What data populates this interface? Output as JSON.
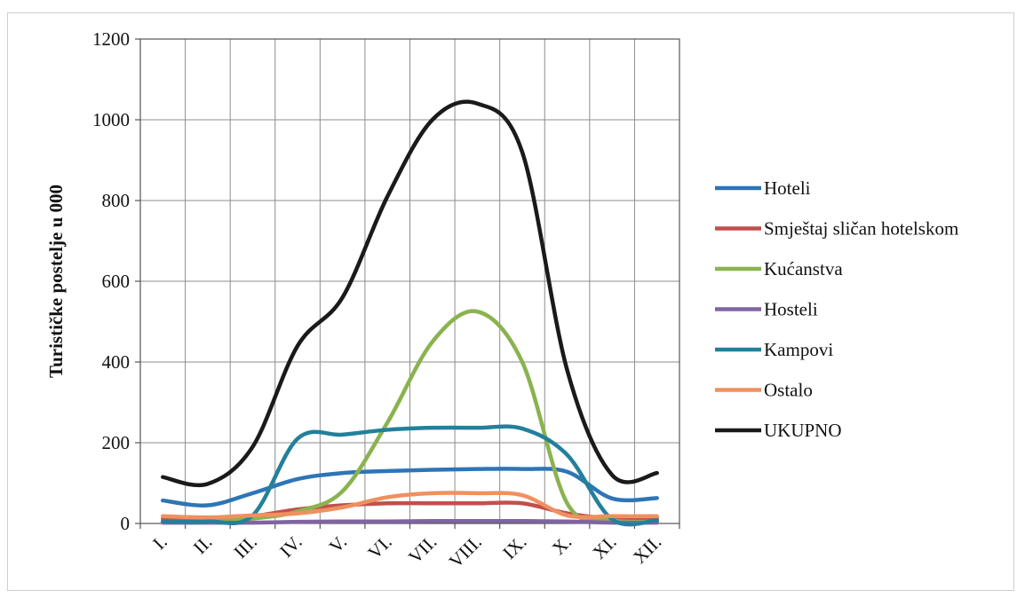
{
  "chart_data": {
    "type": "line",
    "ylabel": "Turističke postelje u 000",
    "xlabel": "",
    "ylim": [
      0,
      1200
    ],
    "yticks": [
      0,
      200,
      400,
      600,
      800,
      1000,
      1200
    ],
    "grid": true,
    "legend_position": "right",
    "categories": [
      "I.",
      "II.",
      "III.",
      "IV.",
      "V.",
      "VI.",
      "VII.",
      "VIII.",
      "IX.",
      "X.",
      "XI.",
      "XII."
    ],
    "series": [
      {
        "name": "Hoteli",
        "color": "#2e75b6",
        "values": [
          57,
          45,
          75,
          110,
          125,
          130,
          133,
          135,
          135,
          128,
          62,
          63
        ]
      },
      {
        "name": "Smještaj sličan hotelskom",
        "color": "#c0504d",
        "values": [
          12,
          12,
          18,
          35,
          45,
          50,
          50,
          50,
          50,
          25,
          12,
          12
        ]
      },
      {
        "name": "Kućanstva",
        "color": "#8ab34f",
        "values": [
          5,
          5,
          12,
          30,
          80,
          250,
          450,
          525,
          400,
          50,
          8,
          5
        ]
      },
      {
        "name": "Hosteli",
        "color": "#8064a2",
        "values": [
          2,
          2,
          2,
          4,
          5,
          5,
          6,
          6,
          6,
          5,
          2,
          2
        ]
      },
      {
        "name": "Kampovi",
        "color": "#23809b",
        "values": [
          5,
          5,
          20,
          210,
          220,
          232,
          237,
          237,
          235,
          170,
          10,
          8
        ]
      },
      {
        "name": "Ostalo",
        "color": "#f0905f",
        "values": [
          18,
          15,
          20,
          25,
          40,
          65,
          75,
          75,
          70,
          20,
          18,
          18
        ]
      },
      {
        "name": "UKUPNO",
        "color": "#1a1a1a",
        "values": [
          115,
          98,
          190,
          440,
          560,
          810,
          1000,
          1040,
          920,
          380,
          120,
          125
        ]
      }
    ]
  }
}
